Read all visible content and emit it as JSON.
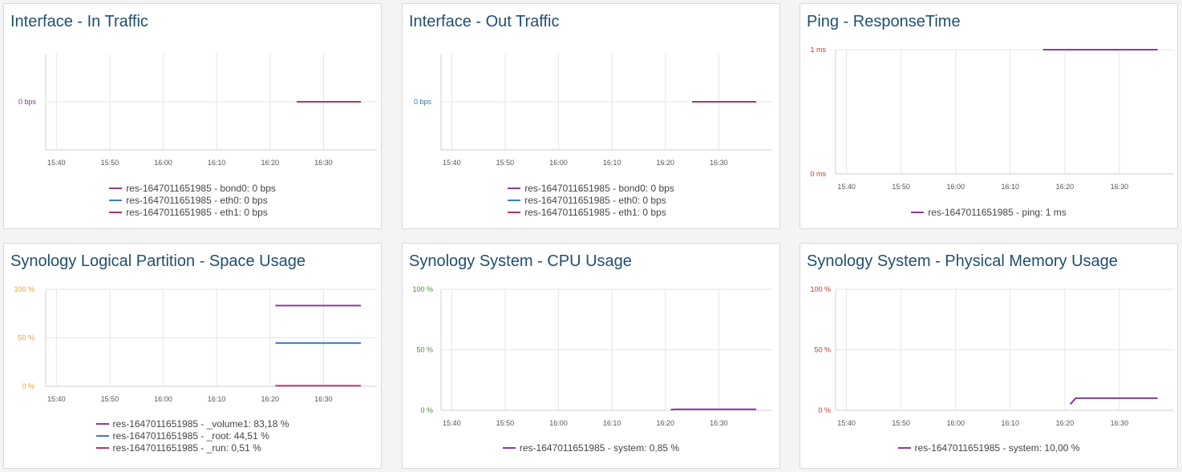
{
  "colors": {
    "purple": "#8b3a9b",
    "blue": "#3d7cc9",
    "magenta": "#b0356f",
    "title": "#1f4f6e"
  },
  "panels": [
    {
      "title": "Interface - In Traffic",
      "chart_data": {
        "type": "line",
        "x_ticks": [
          "15:40",
          "15:50",
          "16:00",
          "16:10",
          "16:20",
          "16:30"
        ],
        "y_ticks": [
          "0 bps"
        ],
        "y_tick_color": "#7a3b8c",
        "series": [
          {
            "name": "res-1647011651985 - bond0: 0 bps",
            "color": "#8b3a9b",
            "points": [
              [
                "16:25",
                0
              ],
              [
                "16:37",
                0
              ]
            ]
          },
          {
            "name": "res-1647011651985 - eth0: 0 bps",
            "color": "#3d7cc9",
            "points": [
              [
                "16:25",
                0
              ],
              [
                "16:37",
                0
              ]
            ]
          },
          {
            "name": "res-1647011651985 - eth1: 0 bps",
            "color": "#b0356f",
            "points": [
              [
                "16:25",
                0
              ],
              [
                "16:37",
                0
              ]
            ]
          }
        ]
      }
    },
    {
      "title": "Interface - Out Traffic",
      "chart_data": {
        "type": "line",
        "x_ticks": [
          "15:40",
          "15:50",
          "16:00",
          "16:10",
          "16:20",
          "16:30"
        ],
        "y_ticks": [
          "0 bps"
        ],
        "y_tick_color": "#3d6fa8",
        "series": [
          {
            "name": "res-1647011651985 - bond0: 0 bps",
            "color": "#8b3a9b",
            "points": [
              [
                "16:25",
                0
              ],
              [
                "16:37",
                0
              ]
            ]
          },
          {
            "name": "res-1647011651985 - eth0: 0 bps",
            "color": "#3d7cc9",
            "points": [
              [
                "16:25",
                0
              ],
              [
                "16:37",
                0
              ]
            ]
          },
          {
            "name": "res-1647011651985 - eth1: 0 bps",
            "color": "#b0356f",
            "points": [
              [
                "16:25",
                0
              ],
              [
                "16:37",
                0
              ]
            ]
          }
        ]
      }
    },
    {
      "title": "Ping - ResponseTime",
      "chart_data": {
        "type": "line",
        "x_ticks": [
          "15:40",
          "15:50",
          "16:00",
          "16:10",
          "16:20",
          "16:30"
        ],
        "y_ticks": [
          "0 ms",
          "1 ms"
        ],
        "y_tick_color": "#c0392b",
        "series": [
          {
            "name": "res-1647011651985 - ping: 1 ms",
            "color": "#8b3a9b",
            "points": [
              [
                "16:16",
                1
              ],
              [
                "16:37",
                1
              ]
            ]
          }
        ]
      }
    },
    {
      "title": "Synology Logical Partition - Space Usage",
      "chart_data": {
        "type": "line",
        "x_ticks": [
          "15:40",
          "15:50",
          "16:00",
          "16:10",
          "16:20",
          "16:30"
        ],
        "y_ticks": [
          "0 %",
          "50 %",
          "100 %"
        ],
        "y_tick_color": "#e6a23c",
        "series": [
          {
            "name": "res-1647011651985 - _volume1: 83,18 %",
            "color": "#8b3a9b",
            "points": [
              [
                "16:21",
                83.18
              ],
              [
                "16:37",
                83.18
              ]
            ]
          },
          {
            "name": "res-1647011651985 - _root: 44,51 %",
            "color": "#3d7cc9",
            "points": [
              [
                "16:21",
                44.51
              ],
              [
                "16:37",
                44.51
              ]
            ]
          },
          {
            "name": "res-1647011651985 - _run: 0,51 %",
            "color": "#b0356f",
            "points": [
              [
                "16:21",
                0.51
              ],
              [
                "16:37",
                0.51
              ]
            ]
          }
        ]
      }
    },
    {
      "title": "Synology System - CPU Usage",
      "chart_data": {
        "type": "line",
        "x_ticks": [
          "15:40",
          "15:50",
          "16:00",
          "16:10",
          "16:20",
          "16:30"
        ],
        "y_ticks": [
          "0 %",
          "50 %",
          "100 %"
        ],
        "y_tick_color": "#4a8a3a",
        "series": [
          {
            "name": "res-1647011651985 - system: 0,85 %",
            "color": "#8b3a9b",
            "points": [
              [
                "16:21",
                0.5
              ],
              [
                "16:22",
                0.85
              ],
              [
                "16:37",
                0.85
              ]
            ]
          }
        ]
      }
    },
    {
      "title": "Synology System - Physical Memory Usage",
      "chart_data": {
        "type": "line",
        "x_ticks": [
          "15:40",
          "15:50",
          "16:00",
          "16:10",
          "16:20",
          "16:30"
        ],
        "y_ticks": [
          "0 %",
          "50 %",
          "100 %"
        ],
        "y_tick_color": "#c0392b",
        "series": [
          {
            "name": "res-1647011651985 - system: 10,00 %",
            "color": "#8b3a9b",
            "points": [
              [
                "16:21",
                5
              ],
              [
                "16:22",
                10
              ],
              [
                "16:37",
                10
              ]
            ]
          }
        ]
      }
    }
  ]
}
